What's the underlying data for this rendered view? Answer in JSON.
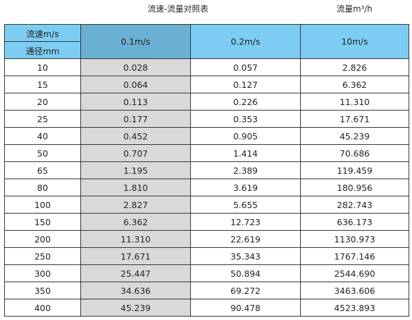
{
  "title": "流速-流量对照表",
  "unit_label": "流量m³/h",
  "header": {
    "velocity_label": "流速m/s",
    "diameter_label": "通径mm",
    "columns": [
      "0.1m/s",
      "0.2m/s",
      "10m/s"
    ]
  },
  "colors": {
    "header": "#7dcdf3",
    "highlight_header": "#6ab0d2",
    "highlight_column": "#d9d9d9"
  },
  "rows": [
    [
      "10",
      "0.028",
      "0.057",
      "2.826"
    ],
    [
      "15",
      "0.064",
      "0.127",
      "6.362"
    ],
    [
      "20",
      "0.113",
      "0.226",
      "11.310"
    ],
    [
      "25",
      "0.177",
      "0.353",
      "17.671"
    ],
    [
      "40",
      "0.452",
      "0.905",
      "45.239"
    ],
    [
      "50",
      "0.707",
      "1.414",
      "70.686"
    ],
    [
      "65",
      "1.195",
      "2.389",
      "119.459"
    ],
    [
      "80",
      "1.810",
      "3.619",
      "180.956"
    ],
    [
      "100",
      "2.827",
      "5.655",
      "282.743"
    ],
    [
      "150",
      "6.362",
      "12.723",
      "636.173"
    ],
    [
      "200",
      "11.310",
      "22.619",
      "1130.973"
    ],
    [
      "250",
      "17.671",
      "35.343",
      "1767.146"
    ],
    [
      "300",
      "25.447",
      "50.894",
      "2544.690"
    ],
    [
      "350",
      "34.636",
      "69.272",
      "3463.606"
    ],
    [
      "400",
      "45.239",
      "90.478",
      "4523.893"
    ]
  ]
}
